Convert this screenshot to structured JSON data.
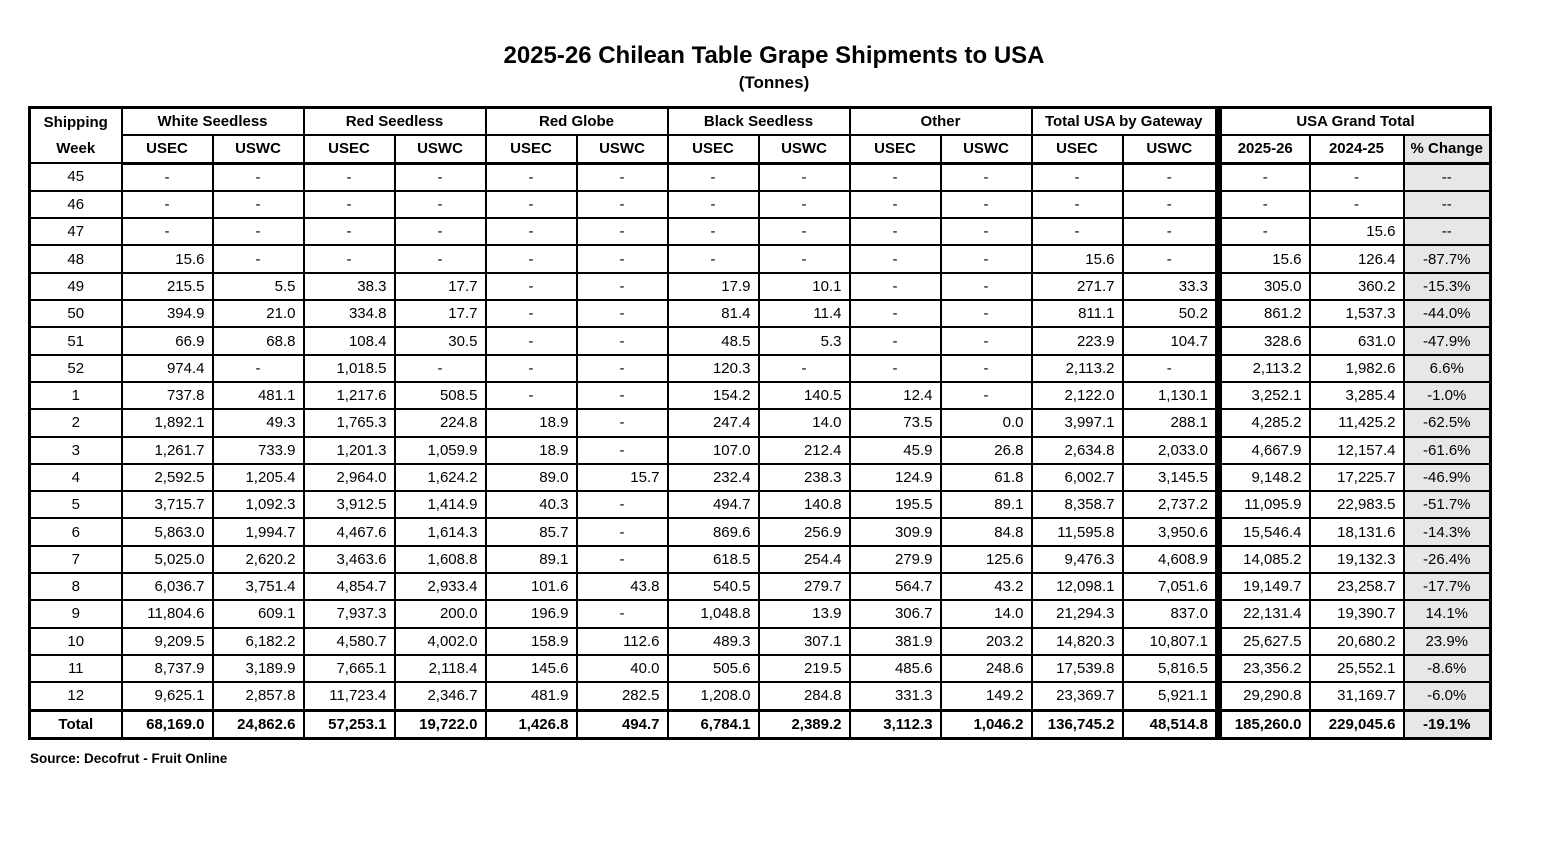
{
  "title": "2025-26 Chilean Table Grape Shipments to USA",
  "subtitle": "(Tonnes)",
  "source": "Source: Decofrut - Fruit Online",
  "colors": {
    "pct_column_bg": "#e7e7e7",
    "border": "#000000",
    "background": "#ffffff"
  },
  "table": {
    "row_header_line1": "Shipping",
    "row_header_line2": "Week",
    "groups": [
      {
        "label": "White Seedless",
        "cols": [
          "USEC",
          "USWC"
        ]
      },
      {
        "label": "Red Seedless",
        "cols": [
          "USEC",
          "USWC"
        ]
      },
      {
        "label": "Red Globe",
        "cols": [
          "USEC",
          "USWC"
        ]
      },
      {
        "label": "Black Seedless",
        "cols": [
          "USEC",
          "USWC"
        ]
      },
      {
        "label": "Other",
        "cols": [
          "USEC",
          "USWC"
        ]
      },
      {
        "label": "Total USA by Gateway",
        "cols": [
          "USEC",
          "USWC"
        ]
      },
      {
        "label": "USA Grand Total",
        "cols": [
          "2025-26",
          "2024-25",
          "% Change"
        ]
      }
    ],
    "rows": [
      {
        "week": "45",
        "cells": [
          "-",
          "-",
          "-",
          "-",
          "-",
          "-",
          "-",
          "-",
          "-",
          "-",
          "-",
          "-",
          "-",
          "-",
          "--"
        ]
      },
      {
        "week": "46",
        "cells": [
          "-",
          "-",
          "-",
          "-",
          "-",
          "-",
          "-",
          "-",
          "-",
          "-",
          "-",
          "-",
          "-",
          "-",
          "--"
        ]
      },
      {
        "week": "47",
        "cells": [
          "-",
          "-",
          "-",
          "-",
          "-",
          "-",
          "-",
          "-",
          "-",
          "-",
          "-",
          "-",
          "-",
          "15.6",
          "--"
        ]
      },
      {
        "week": "48",
        "cells": [
          "15.6",
          "-",
          "-",
          "-",
          "-",
          "-",
          "-",
          "-",
          "-",
          "-",
          "15.6",
          "-",
          "15.6",
          "126.4",
          "-87.7%"
        ]
      },
      {
        "week": "49",
        "cells": [
          "215.5",
          "5.5",
          "38.3",
          "17.7",
          "-",
          "-",
          "17.9",
          "10.1",
          "-",
          "-",
          "271.7",
          "33.3",
          "305.0",
          "360.2",
          "-15.3%"
        ]
      },
      {
        "week": "50",
        "cells": [
          "394.9",
          "21.0",
          "334.8",
          "17.7",
          "-",
          "-",
          "81.4",
          "11.4",
          "-",
          "-",
          "811.1",
          "50.2",
          "861.2",
          "1,537.3",
          "-44.0%"
        ]
      },
      {
        "week": "51",
        "cells": [
          "66.9",
          "68.8",
          "108.4",
          "30.5",
          "-",
          "-",
          "48.5",
          "5.3",
          "-",
          "-",
          "223.9",
          "104.7",
          "328.6",
          "631.0",
          "-47.9%"
        ]
      },
      {
        "week": "52",
        "cells": [
          "974.4",
          "-",
          "1,018.5",
          "-",
          "-",
          "-",
          "120.3",
          "-",
          "-",
          "-",
          "2,113.2",
          "-",
          "2,113.2",
          "1,982.6",
          "6.6%"
        ]
      },
      {
        "week": "1",
        "cells": [
          "737.8",
          "481.1",
          "1,217.6",
          "508.5",
          "-",
          "-",
          "154.2",
          "140.5",
          "12.4",
          "-",
          "2,122.0",
          "1,130.1",
          "3,252.1",
          "3,285.4",
          "-1.0%"
        ]
      },
      {
        "week": "2",
        "cells": [
          "1,892.1",
          "49.3",
          "1,765.3",
          "224.8",
          "18.9",
          "-",
          "247.4",
          "14.0",
          "73.5",
          "0.0",
          "3,997.1",
          "288.1",
          "4,285.2",
          "11,425.2",
          "-62.5%"
        ]
      },
      {
        "week": "3",
        "cells": [
          "1,261.7",
          "733.9",
          "1,201.3",
          "1,059.9",
          "18.9",
          "-",
          "107.0",
          "212.4",
          "45.9",
          "26.8",
          "2,634.8",
          "2,033.0",
          "4,667.9",
          "12,157.4",
          "-61.6%"
        ]
      },
      {
        "week": "4",
        "cells": [
          "2,592.5",
          "1,205.4",
          "2,964.0",
          "1,624.2",
          "89.0",
          "15.7",
          "232.4",
          "238.3",
          "124.9",
          "61.8",
          "6,002.7",
          "3,145.5",
          "9,148.2",
          "17,225.7",
          "-46.9%"
        ]
      },
      {
        "week": "5",
        "cells": [
          "3,715.7",
          "1,092.3",
          "3,912.5",
          "1,414.9",
          "40.3",
          "-",
          "494.7",
          "140.8",
          "195.5",
          "89.1",
          "8,358.7",
          "2,737.2",
          "11,095.9",
          "22,983.5",
          "-51.7%"
        ]
      },
      {
        "week": "6",
        "cells": [
          "5,863.0",
          "1,994.7",
          "4,467.6",
          "1,614.3",
          "85.7",
          "-",
          "869.6",
          "256.9",
          "309.9",
          "84.8",
          "11,595.8",
          "3,950.6",
          "15,546.4",
          "18,131.6",
          "-14.3%"
        ]
      },
      {
        "week": "7",
        "cells": [
          "5,025.0",
          "2,620.2",
          "3,463.6",
          "1,608.8",
          "89.1",
          "-",
          "618.5",
          "254.4",
          "279.9",
          "125.6",
          "9,476.3",
          "4,608.9",
          "14,085.2",
          "19,132.3",
          "-26.4%"
        ]
      },
      {
        "week": "8",
        "cells": [
          "6,036.7",
          "3,751.4",
          "4,854.7",
          "2,933.4",
          "101.6",
          "43.8",
          "540.5",
          "279.7",
          "564.7",
          "43.2",
          "12,098.1",
          "7,051.6",
          "19,149.7",
          "23,258.7",
          "-17.7%"
        ]
      },
      {
        "week": "9",
        "cells": [
          "11,804.6",
          "609.1",
          "7,937.3",
          "200.0",
          "196.9",
          "-",
          "1,048.8",
          "13.9",
          "306.7",
          "14.0",
          "21,294.3",
          "837.0",
          "22,131.4",
          "19,390.7",
          "14.1%"
        ]
      },
      {
        "week": "10",
        "cells": [
          "9,209.5",
          "6,182.2",
          "4,580.7",
          "4,002.0",
          "158.9",
          "112.6",
          "489.3",
          "307.1",
          "381.9",
          "203.2",
          "14,820.3",
          "10,807.1",
          "25,627.5",
          "20,680.2",
          "23.9%"
        ]
      },
      {
        "week": "11",
        "cells": [
          "8,737.9",
          "3,189.9",
          "7,665.1",
          "2,118.4",
          "145.6",
          "40.0",
          "505.6",
          "219.5",
          "485.6",
          "248.6",
          "17,539.8",
          "5,816.5",
          "23,356.2",
          "25,552.1",
          "-8.6%"
        ]
      },
      {
        "week": "12",
        "cells": [
          "9,625.1",
          "2,857.8",
          "11,723.4",
          "2,346.7",
          "481.9",
          "282.5",
          "1,208.0",
          "284.8",
          "331.3",
          "149.2",
          "23,369.7",
          "5,921.1",
          "29,290.8",
          "31,169.7",
          "-6.0%"
        ]
      }
    ],
    "total_row": {
      "week": "Total",
      "cells": [
        "68,169.0",
        "24,862.6",
        "57,253.1",
        "19,722.0",
        "1,426.8",
        "494.7",
        "6,784.1",
        "2,389.2",
        "3,112.3",
        "1,046.2",
        "136,745.2",
        "48,514.8",
        "185,260.0",
        "229,045.6",
        "-19.1%"
      ]
    }
  }
}
